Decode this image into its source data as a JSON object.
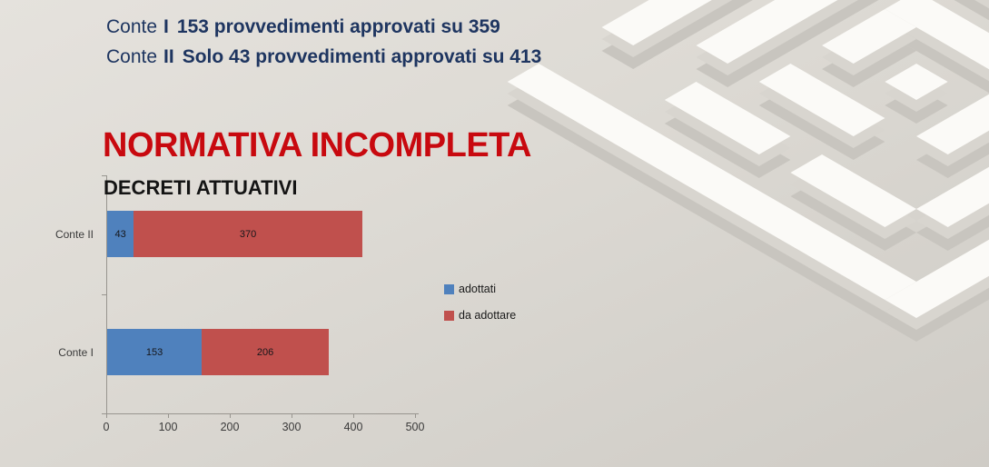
{
  "slide": {
    "header": {
      "lines": [
        {
          "label": "Conte",
          "numeral": "I",
          "text": "153 provvedimenti approvati su 359"
        },
        {
          "label": "Conte",
          "numeral": "II",
          "text": "Solo 43 provvedimenti approvati su 413"
        }
      ]
    },
    "title": "NORMATIVA INCOMPLETA",
    "chart_heading": "DECRETI ATTUATIVI"
  },
  "chart_data": {
    "type": "bar",
    "orientation": "horizontal",
    "stacked": true,
    "title": "DECRETI ATTUATIVI",
    "categories": [
      "Conte II",
      "Conte I"
    ],
    "series": [
      {
        "name": "adottati",
        "color": "#4F81BD",
        "values": [
          43,
          153
        ]
      },
      {
        "name": "da adottare",
        "color": "#C0504D",
        "values": [
          370,
          206
        ]
      }
    ],
    "totals": [
      413,
      359
    ],
    "xlim": [
      0,
      500
    ],
    "x_ticks": [
      0,
      100,
      200,
      300,
      400,
      500
    ],
    "grid": false,
    "bar_value_labels": true,
    "legend_position": "right"
  },
  "colors": {
    "header_navy": "#1E3560",
    "title_red": "#C8090F",
    "bar_blue": "#4F81BD",
    "bar_red": "#C0504D",
    "axis_gray": "#98958F",
    "text_dark": "#262626",
    "background": "#DCD9D3"
  }
}
